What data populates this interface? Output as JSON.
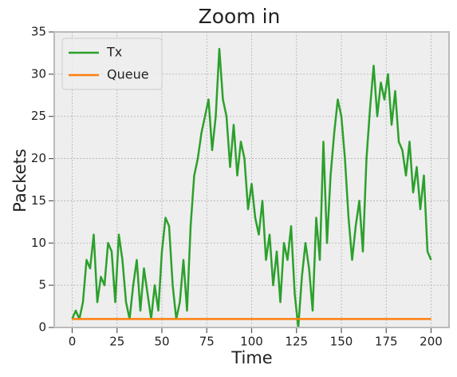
{
  "chart_data": {
    "type": "line",
    "title": "Zoom in",
    "x_label": "Time",
    "y_label": "Packets",
    "x": [
      0,
      2,
      4,
      6,
      8,
      10,
      12,
      14,
      16,
      18,
      20,
      22,
      24,
      26,
      28,
      30,
      32,
      34,
      36,
      38,
      40,
      42,
      44,
      46,
      48,
      50,
      52,
      54,
      56,
      58,
      60,
      62,
      64,
      66,
      68,
      70,
      72,
      74,
      76,
      78,
      80,
      82,
      84,
      86,
      88,
      90,
      92,
      94,
      96,
      98,
      100,
      102,
      104,
      106,
      108,
      110,
      112,
      114,
      116,
      118,
      120,
      122,
      124,
      126,
      128,
      130,
      132,
      134,
      136,
      138,
      140,
      142,
      144,
      146,
      148,
      150,
      152,
      154,
      156,
      158,
      160,
      162,
      164,
      166,
      168,
      170,
      172,
      174,
      176,
      178,
      180,
      182,
      184,
      186,
      188,
      190,
      192,
      194,
      196,
      198,
      200
    ],
    "series": [
      {
        "name": "Tx",
        "color": "#2ca02c",
        "values": [
          1,
          2,
          1,
          3,
          8,
          7,
          11,
          3,
          6,
          5,
          10,
          9,
          3,
          11,
          8,
          3,
          1,
          5,
          8,
          2,
          7,
          4,
          1,
          5,
          2,
          9,
          13,
          12,
          5,
          1,
          3,
          8,
          2,
          12,
          18,
          20,
          23,
          25,
          27,
          21,
          25,
          33,
          27,
          25,
          19,
          24,
          18,
          22,
          20,
          14,
          17,
          13,
          11,
          15,
          8,
          11,
          5,
          9,
          3,
          10,
          8,
          12,
          4,
          0,
          6,
          10,
          7,
          2,
          13,
          8,
          22,
          10,
          18,
          23,
          27,
          25,
          20,
          13,
          8,
          12,
          15,
          9,
          20,
          26,
          31,
          25,
          29,
          27,
          30,
          24,
          28,
          22,
          21,
          18,
          22,
          16,
          19,
          14,
          18,
          9,
          8
        ]
      },
      {
        "name": "Queue",
        "color": "#ff7f0e",
        "values": [
          1,
          1,
          1,
          1,
          1,
          1,
          1,
          1,
          1,
          1,
          1,
          1,
          1,
          1,
          1,
          1,
          1,
          1,
          1,
          1,
          1,
          1,
          1,
          1,
          1,
          1,
          1,
          1,
          1,
          1,
          1,
          1,
          1,
          1,
          1,
          1,
          1,
          1,
          1,
          1,
          1,
          1,
          1,
          1,
          1,
          1,
          1,
          1,
          1,
          1,
          1,
          1,
          1,
          1,
          1,
          1,
          1,
          1,
          1,
          1,
          1,
          1,
          1,
          1,
          1,
          1,
          1,
          1,
          1,
          1,
          1,
          1,
          1,
          1,
          1,
          1,
          1,
          1,
          1,
          1,
          1,
          1,
          1,
          1,
          1,
          1,
          1,
          1,
          1,
          1,
          1,
          1,
          1,
          1,
          1,
          1,
          1,
          1,
          1,
          1,
          1
        ]
      }
    ],
    "xlim": [
      -10,
      210
    ],
    "ylim": [
      0,
      35
    ],
    "xticks": [
      0,
      25,
      50,
      75,
      100,
      125,
      150,
      175,
      200
    ],
    "yticks": [
      0,
      5,
      10,
      15,
      20,
      25,
      30,
      35
    ],
    "grid": true,
    "legend": "upper-left"
  }
}
